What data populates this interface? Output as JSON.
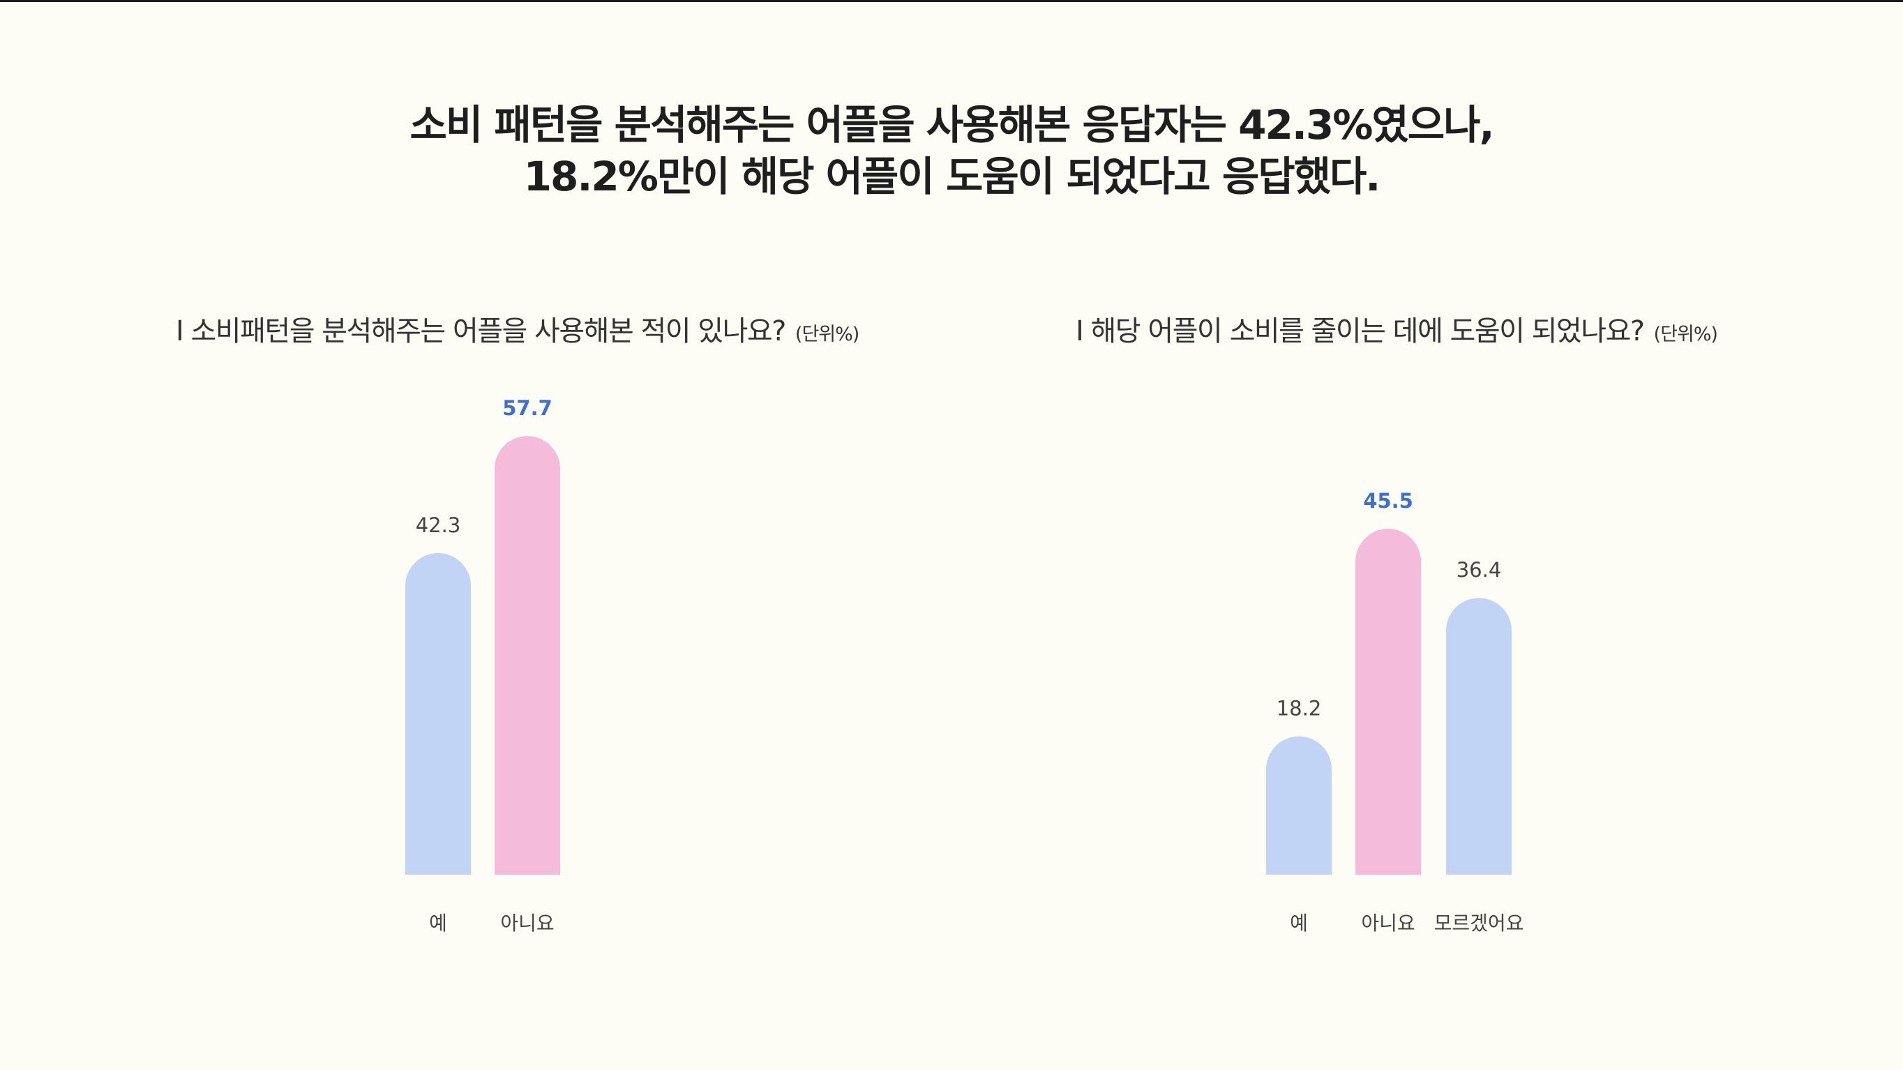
{
  "headline": {
    "line1": "소비 패턴을 분석해주는 어플을 사용해본 응답자는 42.3%였으나,",
    "line2": "18.2%만이 해당 어플이 도움이 되었다고 응답했다."
  },
  "colors": {
    "blue": "#c2d4f6",
    "pink": "#f4bbdb",
    "highlight_label": "#3b6fd4",
    "label": "#444444"
  },
  "chart_data": [
    {
      "type": "bar",
      "title": "I 소비패턴을 분석해주는 어플을 사용해본 적이 있나요?",
      "unit": "(단위%)",
      "categories": [
        "예",
        "아니요"
      ],
      "values": [
        42.3,
        57.7
      ],
      "value_labels": [
        "42.3",
        "57.7"
      ],
      "bar_colors": [
        "blue",
        "pink"
      ],
      "highlight": [
        false,
        true
      ],
      "grid": false
    },
    {
      "type": "bar",
      "title": "I 해당 어플이 소비를 줄이는 데에 도움이 되었나요?",
      "unit": "(단위%)",
      "categories": [
        "예",
        "아니요",
        "모르겠어요"
      ],
      "values": [
        18.2,
        45.5,
        36.4
      ],
      "value_labels": [
        "18.2",
        "45.5",
        "36.4"
      ],
      "bar_colors": [
        "blue",
        "pink",
        "blue"
      ],
      "highlight": [
        false,
        true,
        false
      ],
      "grid": false
    }
  ]
}
